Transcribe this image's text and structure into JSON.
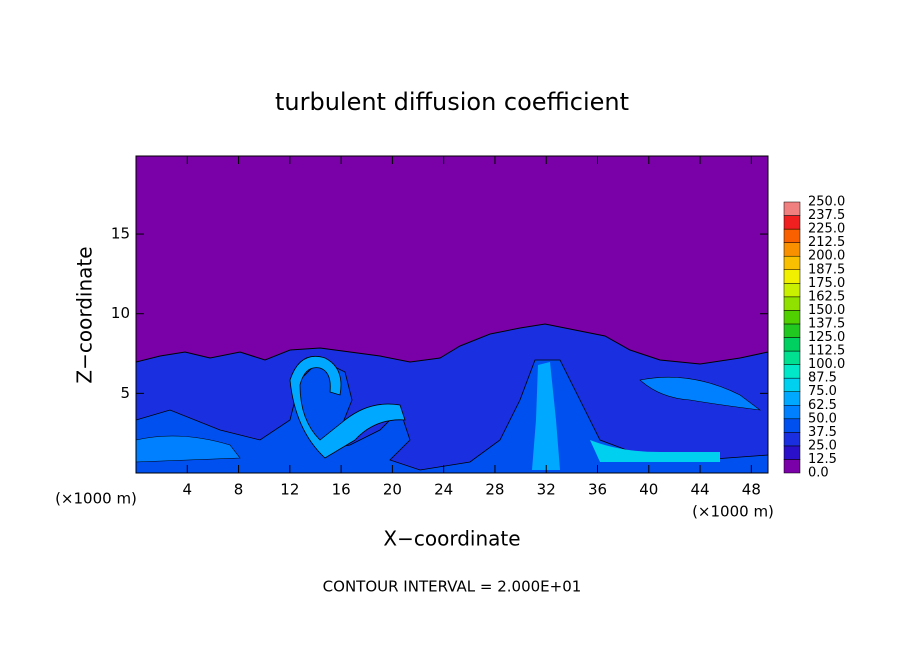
{
  "chart_data": {
    "type": "contour",
    "title": "turbulent diffusion coefficient",
    "x_label": "X−coordinate",
    "y_label": "Z−coordinate",
    "x_unit": "(×1000 m)",
    "x_unit_right": "(×1000 m)",
    "footer": "CONTOUR INTERVAL = 2.000E+01",
    "xlim": [
      0,
      49.3
    ],
    "ylim": [
      0,
      19.9
    ],
    "xticks": [
      4,
      8,
      12,
      16,
      20,
      24,
      28,
      32,
      36,
      40,
      44,
      48
    ],
    "yticks": [
      5,
      10,
      15
    ],
    "background_color": "#7a00a8",
    "colorbar": {
      "levels": [
        {
          "value": 0,
          "label": "0.0"
        },
        12.5,
        {
          "value": 25,
          "label": "25.0"
        },
        37.5,
        {
          "value": 50,
          "label": "50.0"
        },
        62.5,
        {
          "value": 75,
          "label": "75.0"
        },
        87.5,
        {
          "value": 100,
          "label": "100.0"
        },
        112.5,
        {
          "value": 125,
          "label": "125.0"
        },
        137.5,
        {
          "value": 150,
          "label": "150.0"
        },
        162.5,
        {
          "value": 175,
          "label": "175.0"
        },
        187.5,
        {
          "value": 200,
          "label": "200.0"
        },
        212.5,
        {
          "value": 225,
          "label": "225.0"
        },
        237.5,
        {
          "value": 250,
          "label": "250.0"
        }
      ],
      "colors": [
        "#7a00a8",
        "#2a10c8",
        "#1a30e0",
        "#0050f0",
        "#0080ff",
        "#00a8ff",
        "#00d0f0",
        "#00e8c8",
        "#00e090",
        "#00d060",
        "#20c820",
        "#50d000",
        "#90e000",
        "#c8f000",
        "#f0f000",
        "#f8c000",
        "#f89000",
        "#f86000",
        "#f02020",
        "#f08080"
      ]
    }
  }
}
